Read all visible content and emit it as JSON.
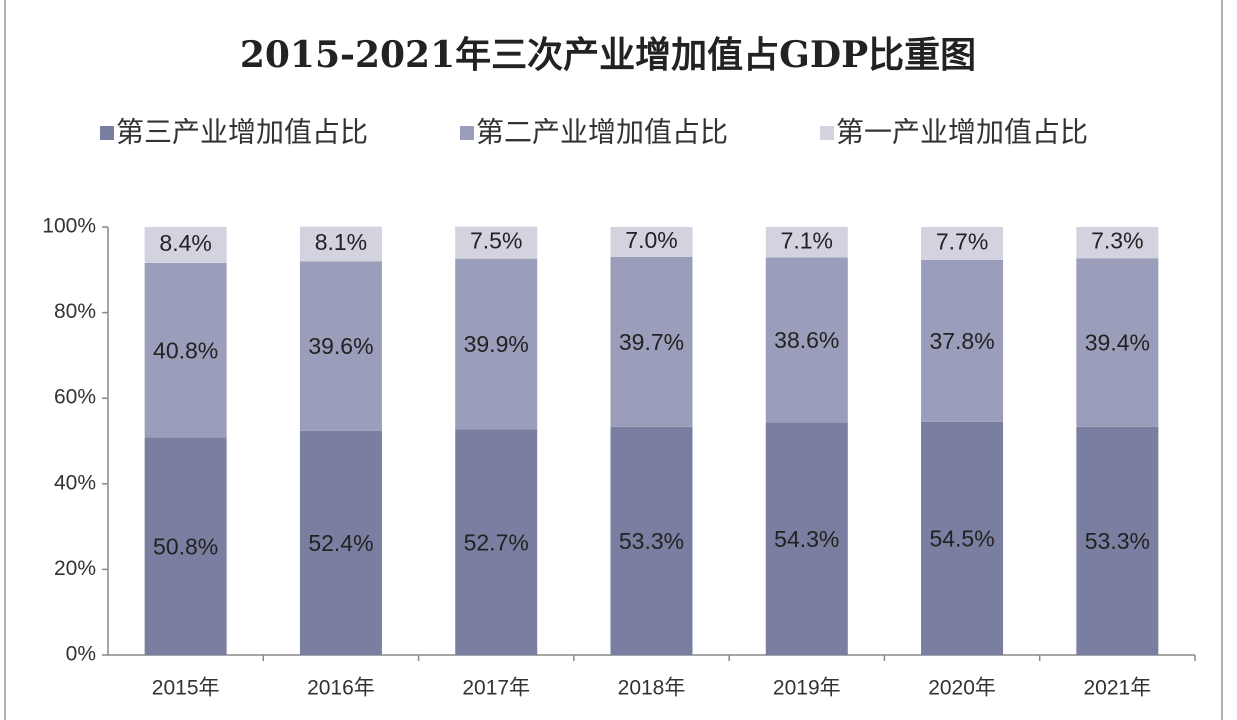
{
  "chart_data": {
    "type": "stacked_bar",
    "title": "2015-2021年三次产业增加值占GDP比重图",
    "categories": [
      "2015年",
      "2016年",
      "2017年",
      "2018年",
      "2019年",
      "2020年",
      "2021年"
    ],
    "series": [
      {
        "name": "第三产业增加值占比",
        "color": "#7a7fa1",
        "values": [
          50.8,
          52.4,
          52.7,
          53.3,
          54.3,
          54.5,
          53.3
        ],
        "value_labels": [
          "50.8%",
          "52.4%",
          "52.7%",
          "53.3%",
          "54.3%",
          "54.5%",
          "53.3%"
        ]
      },
      {
        "name": "第二产业增加值占比",
        "color": "#9b9ebb",
        "values": [
          40.8,
          39.6,
          39.9,
          39.7,
          38.6,
          37.8,
          39.4
        ],
        "value_labels": [
          "40.8%",
          "39.6%",
          "39.9%",
          "39.7%",
          "38.6%",
          "37.8%",
          "39.4%"
        ]
      },
      {
        "name": "第一产业增加值占比",
        "color": "#d2d3df",
        "values": [
          8.4,
          8.1,
          7.5,
          7.0,
          7.1,
          7.7,
          7.3
        ],
        "value_labels": [
          "8.4%",
          "8.1%",
          "7.5%",
          "7.0%",
          "7.1%",
          "7.7%",
          "7.3%"
        ]
      }
    ],
    "ylim": [
      0,
      100
    ],
    "yticks": [
      {
        "value": 0,
        "label": "0%"
      },
      {
        "value": 20,
        "label": "20%"
      },
      {
        "value": 40,
        "label": "40%"
      },
      {
        "value": 60,
        "label": "60%"
      },
      {
        "value": 80,
        "label": "80%"
      },
      {
        "value": 100,
        "label": "100%"
      }
    ],
    "legend": "top"
  }
}
